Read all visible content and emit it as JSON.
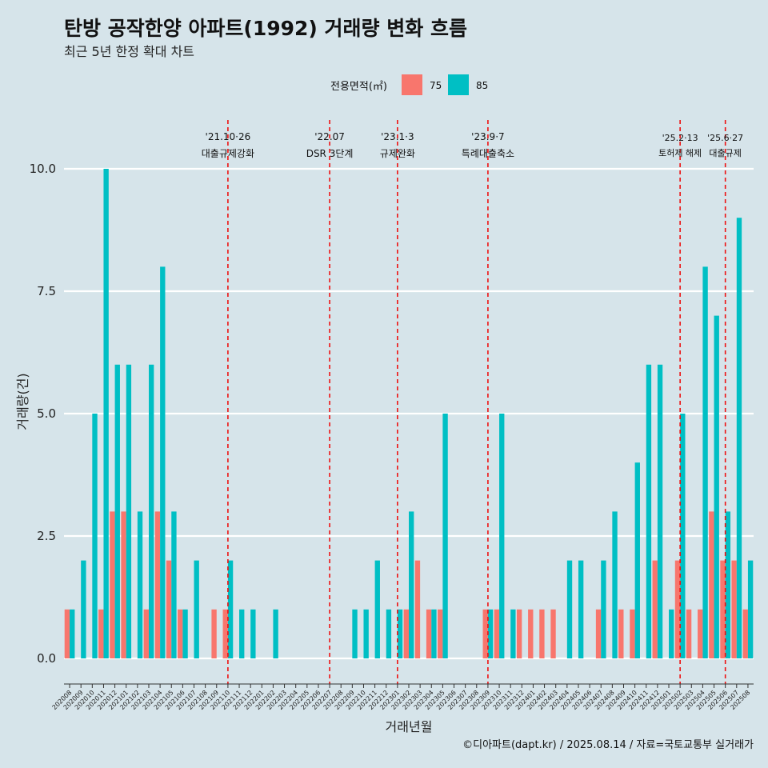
{
  "chart_data": {
    "type": "bar",
    "title": "탄방 공작한양 아파트(1992) 거래량 변화 흐름",
    "subtitle": "최근 5년 한정 확대 차트",
    "xlabel": "거래년월",
    "ylabel": "거래량(건)",
    "ylim": [
      0,
      10
    ],
    "yticks": [
      "0.0",
      "2.5",
      "5.0",
      "7.5",
      "10.0"
    ],
    "legend": {
      "title": "전용면적(㎡)",
      "placement": "top"
    },
    "categories": [
      "202008",
      "202009",
      "202010",
      "202011",
      "202012",
      "202101",
      "202102",
      "202103",
      "202104",
      "202105",
      "202106",
      "202107",
      "202108",
      "202109",
      "202110",
      "202111",
      "202112",
      "202201",
      "202202",
      "202203",
      "202204",
      "202205",
      "202206",
      "202207",
      "202208",
      "202209",
      "202210",
      "202211",
      "202212",
      "202301",
      "202302",
      "202303",
      "202304",
      "202305",
      "202306",
      "202307",
      "202308",
      "202309",
      "202310",
      "202311",
      "202312",
      "202401",
      "202402",
      "202403",
      "202404",
      "202405",
      "202406",
      "202407",
      "202408",
      "202409",
      "202410",
      "202411",
      "202412",
      "202501",
      "202502",
      "202503",
      "202504",
      "202505",
      "202506",
      "202507",
      "202508"
    ],
    "series": [
      {
        "name": "75",
        "color": "#f8766d",
        "values": [
          1,
          0,
          0,
          1,
          3,
          3,
          0,
          1,
          3,
          2,
          1,
          0,
          0,
          1,
          1,
          0,
          0,
          0,
          0,
          0,
          0,
          0,
          0,
          0,
          0,
          0,
          0,
          0,
          0,
          0,
          1,
          2,
          1,
          1,
          0,
          0,
          0,
          1,
          1,
          0,
          1,
          1,
          1,
          1,
          0,
          0,
          0,
          1,
          0,
          1,
          1,
          0,
          2,
          0,
          2,
          1,
          1,
          3,
          2,
          2,
          1
        ]
      },
      {
        "name": "85",
        "color": "#00bfc4",
        "values": [
          1,
          2,
          5,
          10,
          6,
          6,
          3,
          6,
          8,
          3,
          1,
          2,
          0,
          0,
          2,
          1,
          1,
          0,
          1,
          0,
          0,
          0,
          0,
          0,
          0,
          1,
          1,
          2,
          1,
          1,
          3,
          0,
          1,
          5,
          0,
          0,
          0,
          1,
          5,
          1,
          0,
          0,
          0,
          0,
          2,
          2,
          0,
          2,
          3,
          0,
          4,
          6,
          6,
          1,
          5,
          0,
          8,
          7,
          3,
          9,
          2
        ]
      }
    ],
    "annotations": [
      {
        "date": "'21.10·26",
        "label": "대출규제강화",
        "index": 14
      },
      {
        "date": "'22.07",
        "label": "DSR 3단계",
        "index": 23
      },
      {
        "date": "'23.1·3",
        "label": "규제완화",
        "index": 29
      },
      {
        "date": "'23.9·7",
        "label": "특례대출축소",
        "index": 37
      },
      {
        "date": "'25.2·13",
        "label": "토허제 해제",
        "index": 54
      },
      {
        "date": "'25.6·27",
        "label": "대출규제",
        "index": 58
      }
    ],
    "caption": "©디아파트(dapt.kr) / 2025.08.14 / 자료=국토교통부 실거래가"
  }
}
